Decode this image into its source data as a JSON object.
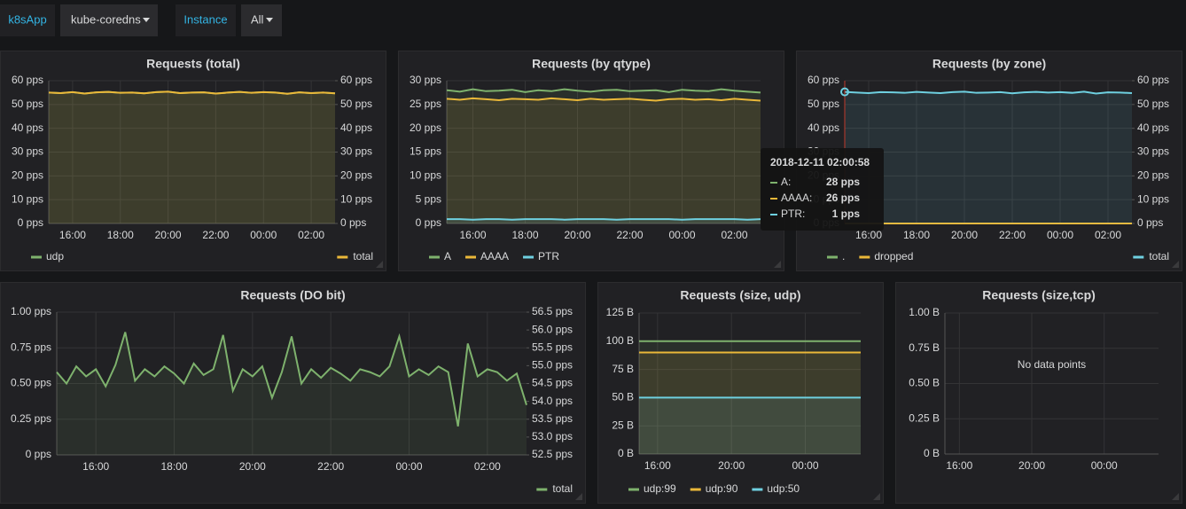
{
  "variables": [
    {
      "label": "k8sApp",
      "value": "kube-coredns"
    },
    {
      "label": "Instance",
      "value": "All"
    }
  ],
  "chart_data": [
    {
      "type": "line",
      "title": "Requests (total)",
      "x": [
        15,
        15.5,
        16,
        16.5,
        17,
        17.5,
        18,
        18.5,
        19,
        19.5,
        20,
        20.5,
        21,
        21.5,
        22,
        22.5,
        23,
        23.5,
        24,
        24.5,
        25,
        25.5,
        26,
        26.5,
        27
      ],
      "series": [
        {
          "name": "udp",
          "color": "#7eb26d",
          "values": [
            55,
            54.8,
            55.2,
            54.6,
            55.1,
            55.3,
            54.9,
            55,
            54.7,
            55.2,
            55.4,
            54.8,
            55,
            55.1,
            54.6,
            55,
            55.3,
            54.9,
            55.2,
            55,
            54.5,
            55.1,
            54.8,
            55,
            54.7
          ]
        },
        {
          "name": "total",
          "color": "#eab839",
          "values": [
            55,
            54.8,
            55.2,
            54.6,
            55.1,
            55.3,
            54.9,
            55,
            54.7,
            55.2,
            55.4,
            54.8,
            55,
            55.1,
            54.6,
            55,
            55.3,
            54.9,
            55.2,
            55,
            54.5,
            55.1,
            54.8,
            55,
            54.7
          ]
        }
      ],
      "xlim": [
        15,
        27
      ],
      "xticks": [
        {
          "value": 16,
          "label": "16:00"
        },
        {
          "value": 18,
          "label": "18:00"
        },
        {
          "value": 20,
          "label": "20:00"
        },
        {
          "value": 22,
          "label": "22:00"
        },
        {
          "value": 24,
          "label": "00:00"
        },
        {
          "value": 26,
          "label": "02:00"
        }
      ],
      "ylim": [
        0,
        60
      ],
      "yticks": [
        {
          "value": 0,
          "label": "0 pps"
        },
        {
          "value": 10,
          "label": "10 pps"
        },
        {
          "value": 20,
          "label": "20 pps"
        },
        {
          "value": 30,
          "label": "30 pps"
        },
        {
          "value": 40,
          "label": "40 pps"
        },
        {
          "value": 50,
          "label": "50 pps"
        },
        {
          "value": 60,
          "label": "60 pps"
        }
      ],
      "y2lim": [
        0,
        60
      ],
      "y2ticks": [
        {
          "value": 0,
          "label": "0 pps"
        },
        {
          "value": 10,
          "label": "10 pps"
        },
        {
          "value": 20,
          "label": "20 pps"
        },
        {
          "value": 30,
          "label": "30 pps"
        },
        {
          "value": 40,
          "label": "40 pps"
        },
        {
          "value": 50,
          "label": "50 pps"
        },
        {
          "value": 60,
          "label": "60 pps"
        }
      ],
      "grid": true
    },
    {
      "type": "line",
      "title": "Requests (by qtype)",
      "x": [
        15,
        15.5,
        16,
        16.5,
        17,
        17.5,
        18,
        18.5,
        19,
        19.5,
        20,
        20.5,
        21,
        21.5,
        22,
        22.5,
        23,
        23.5,
        24,
        24.5,
        25,
        25.5,
        26,
        26.5,
        27
      ],
      "series": [
        {
          "name": "A",
          "color": "#7eb26d",
          "values": [
            28,
            27.7,
            28.2,
            27.8,
            27.9,
            28.1,
            27.6,
            28,
            27.8,
            28.2,
            27.9,
            27.7,
            28,
            28.1,
            27.8,
            27.9,
            28,
            27.6,
            28.1,
            27.9,
            27.8,
            28.2,
            27.9,
            27.7,
            27.5
          ]
        },
        {
          "name": "AAAA",
          "color": "#eab839",
          "values": [
            26.2,
            26,
            26.3,
            26.1,
            25.9,
            26.2,
            26.1,
            26,
            26.3,
            26.1,
            25.9,
            26.2,
            26,
            26.1,
            26.2,
            26,
            25.8,
            26.1,
            26.2,
            26,
            26.1,
            25.9,
            26.2,
            26,
            25.8
          ]
        },
        {
          "name": "PTR",
          "color": "#6ed0e0",
          "values": [
            0.9,
            0.9,
            0.8,
            0.9,
            0.9,
            0.8,
            0.9,
            0.9,
            0.9,
            0.8,
            0.9,
            0.9,
            0.9,
            0.8,
            0.9,
            0.9,
            0.9,
            0.9,
            0.8,
            0.9,
            0.9,
            0.9,
            0.9,
            0.8,
            0.9
          ]
        }
      ],
      "xlim": [
        15,
        27
      ],
      "xticks": [
        {
          "value": 16,
          "label": "16:00"
        },
        {
          "value": 18,
          "label": "18:00"
        },
        {
          "value": 20,
          "label": "20:00"
        },
        {
          "value": 22,
          "label": "22:00"
        },
        {
          "value": 24,
          "label": "00:00"
        },
        {
          "value": 26,
          "label": "02:00"
        }
      ],
      "ylim": [
        0,
        30
      ],
      "yticks": [
        {
          "value": 0,
          "label": "0 pps"
        },
        {
          "value": 5,
          "label": "5 pps"
        },
        {
          "value": 10,
          "label": "10 pps"
        },
        {
          "value": 15,
          "label": "15 pps"
        },
        {
          "value": 20,
          "label": "20 pps"
        },
        {
          "value": 25,
          "label": "25 pps"
        },
        {
          "value": 30,
          "label": "30 pps"
        }
      ],
      "grid": true,
      "tooltip": {
        "title": "2018-12-11 02:00:58",
        "rows": [
          {
            "label": "A:",
            "value": "28 pps"
          },
          {
            "label": "AAAA:",
            "value": "26 pps"
          },
          {
            "label": "PTR:",
            "value": "1 pps"
          }
        ]
      }
    },
    {
      "type": "line",
      "title": "Requests (by zone)",
      "x": [
        15,
        15.5,
        16,
        16.5,
        17,
        17.5,
        18,
        18.5,
        19,
        19.5,
        20,
        20.5,
        21,
        21.5,
        22,
        22.5,
        23,
        23.5,
        24,
        24.5,
        25,
        25.5,
        26,
        26.5,
        27
      ],
      "series": [
        {
          "name": ".",
          "color": "#7eb26d",
          "values": [
            0,
            0,
            0,
            0,
            0,
            0,
            0,
            0,
            0,
            0,
            0,
            0,
            0,
            0,
            0,
            0,
            0,
            0,
            0,
            0,
            0,
            0,
            0,
            0,
            0
          ]
        },
        {
          "name": "dropped",
          "color": "#eab839",
          "values": [
            0,
            0,
            0,
            0,
            0,
            0,
            0,
            0,
            0,
            0,
            0,
            0,
            0,
            0,
            0,
            0,
            0,
            0,
            0,
            0,
            0,
            0,
            0,
            0,
            0
          ]
        },
        {
          "name": "total",
          "color": "#6ed0e0",
          "values": [
            55.3,
            55,
            54.8,
            55.2,
            55.1,
            54.9,
            55.3,
            55,
            54.8,
            55.2,
            55.4,
            54.9,
            55,
            55.2,
            54.7,
            55.1,
            55.3,
            55,
            55.2,
            54.9,
            55.4,
            54.6,
            55.1,
            55,
            54.8
          ]
        }
      ],
      "xlim": [
        15,
        27
      ],
      "xticks": [
        {
          "value": 16,
          "label": "16:00"
        },
        {
          "value": 18,
          "label": "18:00"
        },
        {
          "value": 20,
          "label": "20:00"
        },
        {
          "value": 22,
          "label": "22:00"
        },
        {
          "value": 24,
          "label": "00:00"
        },
        {
          "value": 26,
          "label": "02:00"
        }
      ],
      "ylim": [
        0,
        60
      ],
      "yticks": [
        {
          "value": 0,
          "label": "0 pps"
        },
        {
          "value": 10,
          "label": "10 pps"
        },
        {
          "value": 20,
          "label": "20 pps"
        },
        {
          "value": 30,
          "label": "30 pps"
        },
        {
          "value": 40,
          "label": "40 pps"
        },
        {
          "value": 50,
          "label": "50 pps"
        },
        {
          "value": 60,
          "label": "60 pps"
        }
      ],
      "y2lim": [
        0,
        60
      ],
      "y2ticks": [
        {
          "value": 0,
          "label": "0 pps"
        },
        {
          "value": 10,
          "label": "10 pps"
        },
        {
          "value": 20,
          "label": "20 pps"
        },
        {
          "value": 30,
          "label": "30 pps"
        },
        {
          "value": 40,
          "label": "40 pps"
        },
        {
          "value": 50,
          "label": "50 pps"
        },
        {
          "value": 60,
          "label": "60 pps"
        }
      ],
      "grid": true
    },
    {
      "type": "line",
      "title": "Requests (DO bit)",
      "x": [
        15,
        15.25,
        15.5,
        15.75,
        16,
        16.25,
        16.5,
        16.75,
        17,
        17.25,
        17.5,
        17.75,
        18,
        18.25,
        18.5,
        18.75,
        19,
        19.25,
        19.5,
        19.75,
        20,
        20.25,
        20.5,
        20.75,
        21,
        21.25,
        21.5,
        21.75,
        22,
        22.25,
        22.5,
        22.75,
        23,
        23.25,
        23.5,
        23.75,
        24,
        24.25,
        24.5,
        24.75,
        25,
        25.25,
        25.5,
        25.75,
        26,
        26.25,
        26.5,
        26.75,
        27
      ],
      "series": [
        {
          "name": "total",
          "color": "#7eb26d",
          "values": [
            0.58,
            0.5,
            0.62,
            0.55,
            0.6,
            0.48,
            0.63,
            0.86,
            0.52,
            0.6,
            0.55,
            0.62,
            0.57,
            0.5,
            0.64,
            0.56,
            0.6,
            0.84,
            0.45,
            0.6,
            0.55,
            0.62,
            0.4,
            0.58,
            0.83,
            0.5,
            0.6,
            0.54,
            0.61,
            0.57,
            0.52,
            0.6,
            0.58,
            0.55,
            0.62,
            0.83,
            0.55,
            0.6,
            0.56,
            0.62,
            0.58,
            0.2,
            0.78,
            0.55,
            0.6,
            0.58,
            0.52,
            0.57,
            0.35
          ]
        }
      ],
      "xlim": [
        15,
        27
      ],
      "xticks": [
        {
          "value": 16,
          "label": "16:00"
        },
        {
          "value": 18,
          "label": "18:00"
        },
        {
          "value": 20,
          "label": "20:00"
        },
        {
          "value": 22,
          "label": "22:00"
        },
        {
          "value": 24,
          "label": "00:00"
        },
        {
          "value": 26,
          "label": "02:00"
        }
      ],
      "ylim": [
        0,
        1
      ],
      "yticks": [
        {
          "value": 0,
          "label": "0 pps"
        },
        {
          "value": 0.25,
          "label": "0.25 pps"
        },
        {
          "value": 0.5,
          "label": "0.50 pps"
        },
        {
          "value": 0.75,
          "label": "0.75 pps"
        },
        {
          "value": 1,
          "label": "1.00 pps"
        }
      ],
      "y2lim": [
        52.5,
        56.5
      ],
      "y2ticks": [
        {
          "value": 52.5,
          "label": "52.5 pps"
        },
        {
          "value": 53,
          "label": "53.0 pps"
        },
        {
          "value": 53.5,
          "label": "53.5 pps"
        },
        {
          "value": 54,
          "label": "54.0 pps"
        },
        {
          "value": 54.5,
          "label": "54.5 pps"
        },
        {
          "value": 55,
          "label": "55.0 pps"
        },
        {
          "value": 55.5,
          "label": "55.5 pps"
        },
        {
          "value": 56,
          "label": "56.0 pps"
        },
        {
          "value": 56.5,
          "label": "56.5 pps"
        }
      ],
      "grid": true
    },
    {
      "type": "line",
      "title": "Requests (size, udp)",
      "x": [
        15,
        27
      ],
      "series": [
        {
          "name": "udp:99",
          "color": "#7eb26d",
          "values": [
            100,
            100
          ]
        },
        {
          "name": "udp:90",
          "color": "#eab839",
          "values": [
            90,
            90
          ]
        },
        {
          "name": "udp:50",
          "color": "#6ed0e0",
          "values": [
            50,
            50
          ]
        }
      ],
      "xlim": [
        15,
        27
      ],
      "xticks": [
        {
          "value": 16,
          "label": "16:00"
        },
        {
          "value": 20,
          "label": "20:00"
        },
        {
          "value": 24,
          "label": "00:00"
        }
      ],
      "ylim": [
        0,
        125
      ],
      "yticks": [
        {
          "value": 0,
          "label": "0 B"
        },
        {
          "value": 25,
          "label": "25 B"
        },
        {
          "value": 50,
          "label": "50 B"
        },
        {
          "value": 75,
          "label": "75 B"
        },
        {
          "value": 100,
          "label": "100 B"
        },
        {
          "value": 125,
          "label": "125 B"
        }
      ],
      "grid": true
    },
    {
      "type": "line",
      "title": "Requests (size,tcp)",
      "x": [],
      "series": [],
      "no_data": "No data points",
      "xlim": [
        15.2,
        27
      ],
      "xticks": [
        {
          "value": 16,
          "label": "16:00"
        },
        {
          "value": 20,
          "label": "20:00"
        },
        {
          "value": 24,
          "label": "00:00"
        }
      ],
      "ylim": [
        0,
        1
      ],
      "yticks": [
        {
          "value": 0,
          "label": "0 B"
        },
        {
          "value": 0.25,
          "label": "0.25 B"
        },
        {
          "value": 0.5,
          "label": "0.50 B"
        },
        {
          "value": 0.75,
          "label": "0.75 B"
        },
        {
          "value": 1,
          "label": "1.00 B"
        }
      ],
      "grid": true
    }
  ]
}
